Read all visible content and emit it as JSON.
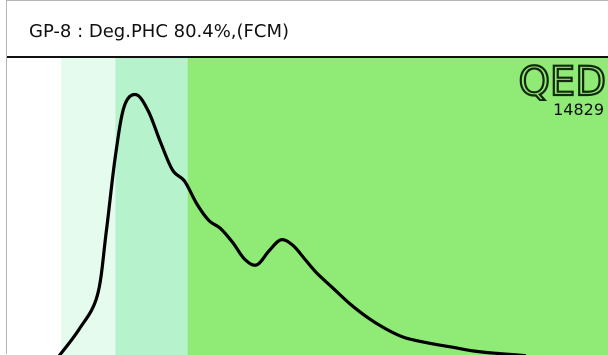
{
  "header": {
    "title": "GP-8 : Deg.PHC 80.4%,(FCM)"
  },
  "badge": {
    "logo_text": "QED",
    "sample_id": "14829"
  },
  "colors": {
    "band_light": "#e4fbee",
    "band_mid": "#b6f3cc",
    "band_main": "#8fea76",
    "trace": "#000000",
    "logo": "#14280f"
  },
  "chart_data": {
    "type": "line",
    "title": "GP-8 : Deg.PHC 80.4%,(FCM)",
    "xlabel": "",
    "ylabel": "",
    "x_range": [
      0,
      100
    ],
    "y_range": [
      0,
      100
    ],
    "grid": false,
    "legend": "none",
    "bands": [
      {
        "from": 0,
        "to": 9,
        "color": "#ffffff"
      },
      {
        "from": 9,
        "to": 18,
        "color": "#e4fbee"
      },
      {
        "from": 18,
        "to": 30,
        "color": "#b6f3cc"
      },
      {
        "from": 30,
        "to": 100,
        "color": "#8fea76"
      }
    ],
    "series": [
      {
        "x": [
          8.5,
          12,
          15,
          16.5,
          18,
          19.5,
          21.5,
          23.5,
          25.5,
          27.5,
          29.5,
          31.5,
          33.5,
          35.5,
          37.5,
          39.5,
          41.5,
          43.5,
          45.5,
          47.5,
          49.5,
          51.5,
          54,
          57,
          60,
          63,
          66,
          70,
          74,
          78,
          82,
          86
        ],
        "y": [
          0,
          10,
          22,
          45,
          72,
          90,
          94,
          88,
          77,
          67,
          63,
          55,
          49,
          46,
          41,
          35,
          33,
          38,
          42,
          40,
          35,
          30,
          25,
          19,
          14,
          10,
          7,
          5,
          3.5,
          2,
          1.2,
          0.5
        ]
      }
    ]
  }
}
